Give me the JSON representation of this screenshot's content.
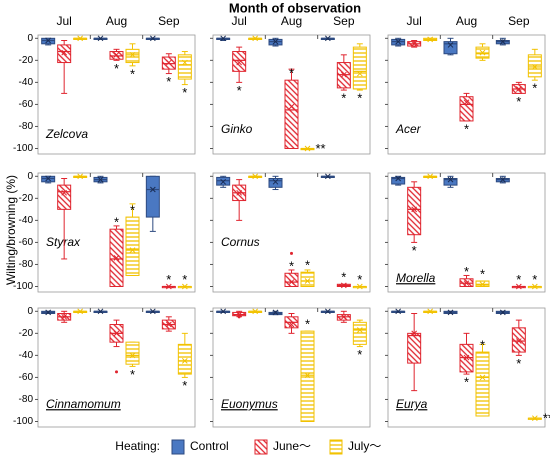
{
  "chart_data": {
    "type": "box",
    "title": "Month of observation",
    "y_label": "Wilting/browning (%)",
    "legend_title": "Heating:",
    "categories": [
      "Jul",
      "Aug",
      "Sep"
    ],
    "ylim": [
      -105,
      3
    ],
    "yticks": [
      0,
      -20,
      -40,
      -60,
      -80,
      -100
    ],
    "series": [
      {
        "name": "Control",
        "color": "#4a78c2",
        "hatch": "solid"
      },
      {
        "name": "June～",
        "color": "#e0242e",
        "hatch": "diagonal"
      },
      {
        "name": "July～",
        "color": "#f2c200",
        "hatch": "horizontal"
      }
    ],
    "panels": [
      {
        "name": "Zelcova",
        "underline": false,
        "boxes": [
          [
            {
              "v": [
                -6,
                -5,
                -2,
                0,
                0
              ],
              "mean": -2
            },
            {
              "v": [
                -50,
                -22,
                -12,
                -6,
                -2
              ],
              "mean": -13
            },
            {
              "v": [
                0,
                0,
                0,
                0,
                0
              ],
              "mean": 0
            }
          ],
          [
            {
              "v": [
                0,
                0,
                0,
                0,
                0
              ],
              "mean": 0
            },
            {
              "v": [
                -20,
                -19,
                -16,
                -12,
                -10
              ],
              "mean": -15,
              "sig": "*"
            },
            {
              "v": [
                -25,
                -22,
                -15,
                -10,
                -5
              ],
              "mean": -15,
              "sig": "*"
            }
          ],
          [
            {
              "v": [
                0,
                0,
                0,
                0,
                0
              ],
              "mean": 0
            },
            {
              "v": [
                -32,
                -28,
                -23,
                -17,
                -14
              ],
              "mean": -22,
              "sig": "*"
            },
            {
              "v": [
                -42,
                -37,
                -24,
                -15,
                -12
              ],
              "mean": -22,
              "sig": "*"
            }
          ]
        ]
      },
      {
        "name": "Ginko",
        "underline": false,
        "boxes": [
          [
            {
              "v": [
                -2,
                -1,
                0,
                0,
                0
              ],
              "mean": 0
            },
            {
              "v": [
                -40,
                -30,
                -20,
                -12,
                -8
              ],
              "mean": -22,
              "sig": "*"
            },
            {
              "v": [
                0,
                0,
                0,
                0,
                0
              ],
              "mean": 0
            }
          ],
          [
            {
              "v": [
                -7,
                -6,
                -3,
                -1,
                0
              ],
              "mean": -3
            },
            {
              "v": [
                -100,
                -100,
                -65,
                -38,
                -28
              ],
              "mean": -62,
              "sig": "*"
            },
            {
              "v": [
                -100,
                -100,
                -100,
                -100,
                -100
              ],
              "mean": -100,
              "sig": "**"
            }
          ],
          [
            {
              "v": [
                0,
                0,
                0,
                0,
                0
              ],
              "mean": 0
            },
            {
              "v": [
                -47,
                -45,
                -33,
                -22,
                -15
              ],
              "mean": -33,
              "sig": "*"
            },
            {
              "v": [
                -47,
                -46,
                -30,
                -8,
                -5
              ],
              "mean": -32,
              "sig": "*"
            }
          ]
        ]
      },
      {
        "name": "Acer",
        "underline": false,
        "boxes": [
          [
            {
              "v": [
                -7,
                -6,
                -3,
                -1,
                0
              ],
              "mean": -3
            },
            {
              "v": [
                -8,
                -7,
                -5,
                -3,
                -2
              ],
              "mean": -5
            },
            {
              "v": [
                -2,
                -2,
                -1,
                0,
                0
              ],
              "mean": -1
            }
          ],
          [
            {
              "v": [
                -15,
                -14,
                -5,
                -3,
                0
              ],
              "mean": -6
            },
            {
              "v": [
                -75,
                -75,
                -60,
                -53,
                -50
              ],
              "mean": -58,
              "sig": "*"
            },
            {
              "v": [
                -20,
                -18,
                -14,
                -8,
                -5
              ],
              "mean": -13
            }
          ],
          [
            {
              "v": [
                -6,
                -5,
                -3,
                -2,
                0
              ],
              "mean": -3
            },
            {
              "v": [
                -50,
                -50,
                -46,
                -42,
                -40
              ],
              "mean": -46,
              "sig": "*"
            },
            {
              "v": [
                -38,
                -35,
                -26,
                -15,
                -10
              ],
              "mean": -26,
              "sig": "*"
            }
          ]
        ]
      },
      {
        "name": "Styrax",
        "underline": false,
        "boxes": [
          [
            {
              "v": [
                -6,
                -5,
                -2,
                0,
                0
              ],
              "mean": -2
            },
            {
              "v": [
                -75,
                -30,
                -14,
                -8,
                -2
              ],
              "mean": -15
            },
            {
              "v": [
                0,
                0,
                0,
                0,
                0
              ],
              "mean": 0
            }
          ],
          [
            {
              "v": [
                -6,
                -5,
                -3,
                -1,
                0
              ],
              "mean": -3
            },
            {
              "v": [
                -100,
                -100,
                -75,
                -48,
                -45
              ],
              "mean": -74,
              "sig": "*"
            },
            {
              "v": [
                -90,
                -90,
                -67,
                -37,
                -25
              ],
              "mean": -67,
              "sig": "*"
            }
          ],
          [
            {
              "v": [
                -50,
                -37,
                -12,
                0,
                0
              ],
              "mean": -12
            },
            {
              "v": [
                -100,
                -100,
                -100,
                -100,
                -100
              ],
              "mean": -100,
              "sig": "*"
            },
            {
              "v": [
                -100,
                -100,
                -100,
                -100,
                -100
              ],
              "mean": -100,
              "sig": "*"
            }
          ]
        ]
      },
      {
        "name": "Cornus",
        "underline": false,
        "boxes": [
          [
            {
              "v": [
                -10,
                -8,
                -4,
                -1,
                0
              ],
              "mean": -5
            },
            {
              "v": [
                -40,
                -22,
                -15,
                -8,
                -3
              ],
              "mean": -15
            },
            {
              "v": [
                0,
                0,
                0,
                0,
                0
              ],
              "mean": 0
            }
          ],
          [
            {
              "v": [
                -12,
                -10,
                -4,
                -2,
                0
              ],
              "mean": -5
            },
            {
              "v": [
                -100,
                -100,
                -96,
                -88,
                -85
              ],
              "mean": -96,
              "out": [
                -70
              ],
              "sig": "*"
            },
            {
              "v": [
                -100,
                -100,
                -95,
                -87,
                -85
              ],
              "mean": -95,
              "sig": "*"
            }
          ],
          [
            {
              "v": [
                0,
                0,
                0,
                0,
                0
              ],
              "mean": 0
            },
            {
              "v": [
                -100,
                -100,
                -99,
                -98,
                -98
              ],
              "mean": -99,
              "sig": "*"
            },
            {
              "v": [
                -100,
                -100,
                -100,
                -100,
                -100
              ],
              "mean": -100,
              "sig": "*"
            }
          ]
        ]
      },
      {
        "name": "Morella",
        "underline": true,
        "boxes": [
          [
            {
              "v": [
                -8,
                -7,
                -2,
                -1,
                0
              ],
              "mean": -2
            },
            {
              "v": [
                -60,
                -53,
                -30,
                -10,
                -5
              ],
              "mean": -30,
              "sig": "*"
            },
            {
              "v": [
                0,
                0,
                0,
                0,
                0
              ],
              "mean": 0
            }
          ],
          [
            {
              "v": [
                -10,
                -8,
                -3,
                -2,
                0
              ],
              "mean": -3
            },
            {
              "v": [
                -100,
                -100,
                -97,
                -93,
                -90
              ],
              "mean": -97,
              "sig": "*"
            },
            {
              "v": [
                -100,
                -100,
                -98,
                -95,
                -95
              ],
              "mean": -98,
              "sig": "*"
            }
          ],
          [
            {
              "v": [
                -6,
                -5,
                -3,
                -2,
                0
              ],
              "mean": -3
            },
            {
              "v": [
                -100,
                -100,
                -100,
                -100,
                -100
              ],
              "mean": -100,
              "sig": "*"
            },
            {
              "v": [
                -100,
                -100,
                -100,
                -100,
                -100
              ],
              "mean": -100,
              "sig": "*"
            }
          ]
        ]
      },
      {
        "name": "Cinnamomum",
        "underline": true,
        "boxes": [
          [
            {
              "v": [
                -2,
                -2,
                -1,
                0,
                0
              ],
              "mean": -1
            },
            {
              "v": [
                -10,
                -8,
                -5,
                -2,
                0
              ],
              "mean": -5
            },
            {
              "v": [
                0,
                0,
                0,
                0,
                0
              ],
              "mean": 0
            }
          ],
          [
            {
              "v": [
                0,
                0,
                0,
                0,
                0
              ],
              "mean": 0
            },
            {
              "v": [
                -32,
                -28,
                -20,
                -12,
                -8
              ],
              "mean": -20,
              "out": [
                -55
              ]
            },
            {
              "v": [
                -50,
                -48,
                -40,
                -28,
                -28
              ],
              "mean": -40,
              "sig": "*"
            }
          ],
          [
            {
              "v": [
                0,
                0,
                0,
                0,
                0
              ],
              "mean": 0
            },
            {
              "v": [
                -18,
                -16,
                -12,
                -8,
                -5
              ],
              "mean": -12
            },
            {
              "v": [
                -60,
                -57,
                -45,
                -30,
                -20
              ],
              "mean": -45,
              "sig": "*"
            }
          ]
        ]
      },
      {
        "name": "Euonymus",
        "underline": true,
        "boxes": [
          [
            {
              "v": [
                0,
                0,
                0,
                0,
                0
              ],
              "mean": 0
            },
            {
              "v": [
                -4,
                -4,
                -3,
                -1,
                0
              ],
              "mean": -3,
              "out": [
                -5
              ]
            },
            {
              "v": [
                0,
                0,
                0,
                0,
                0
              ],
              "mean": 0
            }
          ],
          [
            {
              "v": [
                -3,
                -3,
                -2,
                -1,
                0
              ],
              "mean": -1
            },
            {
              "v": [
                -20,
                -15,
                -10,
                -5,
                -2
              ],
              "mean": -12
            },
            {
              "v": [
                -100,
                -100,
                -58,
                -18,
                -18
              ],
              "mean": -58,
              "sig": "*"
            }
          ],
          [
            {
              "v": [
                0,
                0,
                0,
                0,
                0
              ],
              "mean": 0
            },
            {
              "v": [
                -10,
                -8,
                -5,
                -3,
                0
              ],
              "mean": -5
            },
            {
              "v": [
                -32,
                -30,
                -17,
                -10,
                -8
              ],
              "mean": -17,
              "sig": "*"
            }
          ]
        ]
      },
      {
        "name": "Eurya",
        "underline": true,
        "boxes": [
          [
            {
              "v": [
                0,
                0,
                0,
                0,
                0
              ],
              "mean": 0
            },
            {
              "v": [
                -72,
                -47,
                -22,
                -20,
                -2
              ],
              "mean": -20
            },
            {
              "v": [
                0,
                0,
                0,
                0,
                0
              ],
              "mean": 0
            }
          ],
          [
            {
              "v": [
                -2,
                -2,
                -1,
                0,
                0
              ],
              "mean": -1
            },
            {
              "v": [
                -57,
                -55,
                -42,
                -30,
                -20
              ],
              "mean": -42,
              "sig": "*"
            },
            {
              "v": [
                -95,
                -95,
                -60,
                -37,
                -30
              ],
              "mean": -60,
              "sig": "*"
            }
          ],
          [
            {
              "v": [
                -2,
                -2,
                -1,
                0,
                0
              ],
              "mean": -1
            },
            {
              "v": [
                -40,
                -37,
                -27,
                -15,
                -8
              ],
              "mean": -27,
              "sig": "*"
            },
            {
              "v": [
                -97,
                -97,
                -97,
                -97,
                -97
              ],
              "mean": -97,
              "sig": "**"
            }
          ]
        ]
      }
    ]
  }
}
